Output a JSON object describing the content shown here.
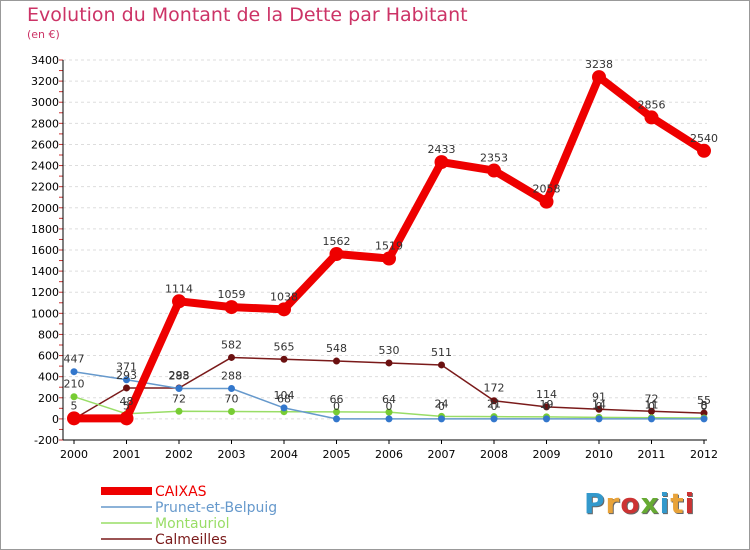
{
  "header": {
    "title": "Evolution du Montant de la Dette par Habitant",
    "subtitle": "(en €)"
  },
  "brand": {
    "text": "Proxiti",
    "colors": [
      "#3399cc",
      "#e8a33a",
      "#cc3333",
      "#66aa33",
      "#3399cc",
      "#e8a33a",
      "#cc3333"
    ]
  },
  "colors": {
    "title": "#cc3366",
    "grid": "#dddddd",
    "axis": "#000000"
  },
  "chart_data": {
    "type": "line",
    "title": "Evolution du Montant de la Dette par Habitant",
    "subtitle": "(en €)",
    "x": [
      "2000",
      "2001",
      "2002",
      "2003",
      "2004",
      "2005",
      "2006",
      "2007",
      "2008",
      "2009",
      "2010",
      "2011",
      "2012"
    ],
    "ylim": [
      -200,
      3400
    ],
    "yticks": [
      -200,
      0,
      200,
      400,
      600,
      800,
      1000,
      1200,
      1400,
      1600,
      1800,
      2000,
      2200,
      2400,
      2600,
      2800,
      3000,
      3200,
      3400
    ],
    "grid": "horizontal dashed",
    "legend_position": "bottom-left",
    "series": [
      {
        "name": "Calmeilles",
        "color": "#7a1a1a",
        "markerColor": "#6b1010",
        "width": 1.5,
        "marker": 3.5,
        "values": [
          0,
          293,
          293,
          582,
          565,
          548,
          530,
          511,
          172,
          114,
          91,
          72,
          55
        ]
      },
      {
        "name": "Montauriol",
        "color": "#99dd66",
        "markerColor": "#77cc33",
        "width": 1.5,
        "marker": 3.5,
        "values": [
          210,
          48,
          72,
          70,
          68,
          66,
          64,
          24,
          21,
          19,
          14,
          11,
          8
        ]
      },
      {
        "name": "Prunet-et-Belpuig",
        "color": "#6699cc",
        "markerColor": "#3377cc",
        "width": 1.5,
        "marker": 3.5,
        "values": [
          447,
          371,
          288,
          288,
          104,
          0,
          0,
          0,
          0,
          0,
          0,
          0,
          0
        ]
      },
      {
        "name": "CAIXAS",
        "color": "#ee0000",
        "markerColor": "#ee0000",
        "width": 8,
        "marker": 7,
        "values": [
          5,
          5,
          1114,
          1059,
          1038,
          1562,
          1519,
          2433,
          2353,
          2058,
          3238,
          2856,
          2540
        ]
      }
    ],
    "data_labels": [
      {
        "series": "CAIXAS",
        "values": [
          "5",
          "5",
          "1114",
          "1059",
          "1038",
          "1562",
          "1519",
          "2433",
          "2353",
          "2058",
          "3238",
          "2856",
          "2540"
        ]
      },
      {
        "series": "Calmeilles",
        "values": [
          "",
          "293",
          "293",
          "582",
          "565",
          "548",
          "530",
          "511",
          "172",
          "114",
          "91",
          "72",
          "55"
        ]
      },
      {
        "series": "Prunet-et-Belpuig",
        "values": [
          "447",
          "371",
          "288",
          "288",
          "104",
          "0",
          "0",
          "0",
          "0",
          "0",
          "0",
          "0",
          "0"
        ]
      },
      {
        "series": "Montauriol",
        "values": [
          "210",
          "48",
          "72",
          "70",
          "68",
          "66",
          "64",
          "24",
          "21",
          "19",
          "14",
          "11",
          "8"
        ]
      }
    ],
    "legend": [
      "CAIXAS",
      "Prunet-et-Belpuig",
      "Montauriol",
      "Calmeilles"
    ]
  }
}
